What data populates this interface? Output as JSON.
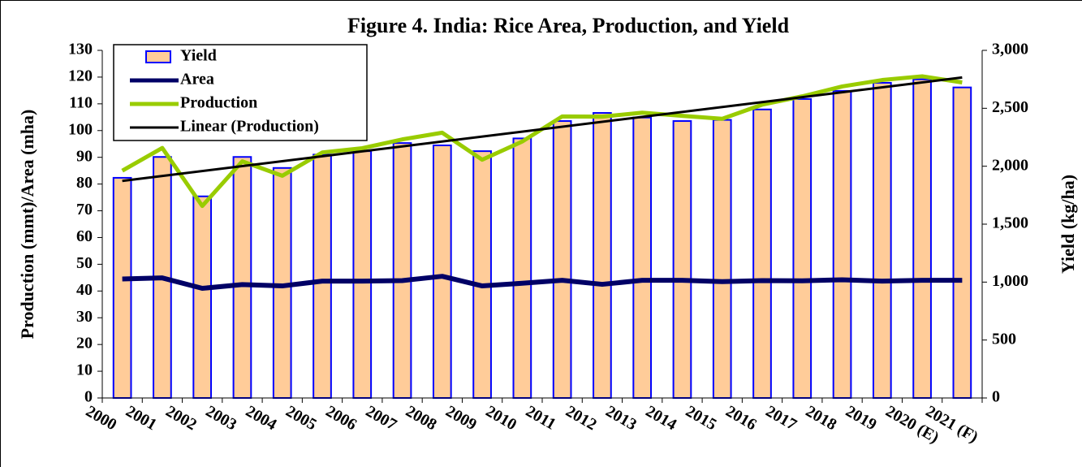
{
  "chart_data": {
    "type": "bar",
    "title": "Figure 4. India: Rice Area, Production, and Yield",
    "ylabel": "Production (mmt)/Area (mha)",
    "y2label": "Yield (kg/ha)",
    "categories": [
      "2000",
      "2001",
      "2002",
      "2003",
      "2004",
      "2005",
      "2006",
      "2007",
      "2008",
      "2009",
      "2010",
      "2011",
      "2012",
      "2013",
      "2014",
      "2015",
      "2016",
      "2017",
      "2018",
      "2019",
      "2020 (E)",
      "2021 (F)"
    ],
    "ylim": [
      0,
      130
    ],
    "yticks": [
      0,
      10,
      20,
      30,
      40,
      50,
      60,
      70,
      80,
      90,
      100,
      110,
      120,
      130
    ],
    "y2lim": [
      0,
      3000
    ],
    "y2ticks": [
      0,
      500,
      {
        "value": 1000,
        "label": "1,000"
      },
      {
        "value": 1500,
        "label": "1,500"
      },
      {
        "value": 2000,
        "label": "2,000"
      },
      {
        "value": 2500,
        "label": "2,500"
      },
      {
        "value": 3000,
        "label": "3,000"
      }
    ],
    "series": [
      {
        "name": "Yield",
        "type": "bar",
        "axis": "y2",
        "color": "#FFCC99",
        "edgecolor": "#0000FF",
        "values": [
          1900,
          2080,
          1740,
          2080,
          1985,
          2100,
          2130,
          2200,
          2180,
          2130,
          2240,
          2390,
          2460,
          2420,
          2390,
          2400,
          2490,
          2580,
          2650,
          2720,
          2750,
          2680
        ]
      },
      {
        "name": "Area",
        "type": "line",
        "color": "#000066",
        "values": [
          44.5,
          44.9,
          41.0,
          42.4,
          41.9,
          43.7,
          43.7,
          43.9,
          45.5,
          41.9,
          42.9,
          44.0,
          42.5,
          44.0,
          44.0,
          43.5,
          43.9,
          43.8,
          44.2,
          43.7,
          44.0,
          44.0
        ]
      },
      {
        "name": "Production",
        "type": "line",
        "color": "#99CC00",
        "values": [
          85.0,
          93.5,
          71.8,
          88.5,
          83.1,
          91.8,
          93.4,
          96.7,
          99.2,
          89.1,
          95.9,
          105.3,
          105.2,
          106.7,
          105.5,
          104.4,
          109.7,
          112.8,
          116.5,
          118.9,
          120.3,
          118.0
        ],
        "trendline": {
          "name": "Linear (Production)",
          "color": "#000000"
        }
      }
    ],
    "legend": "upper left"
  }
}
